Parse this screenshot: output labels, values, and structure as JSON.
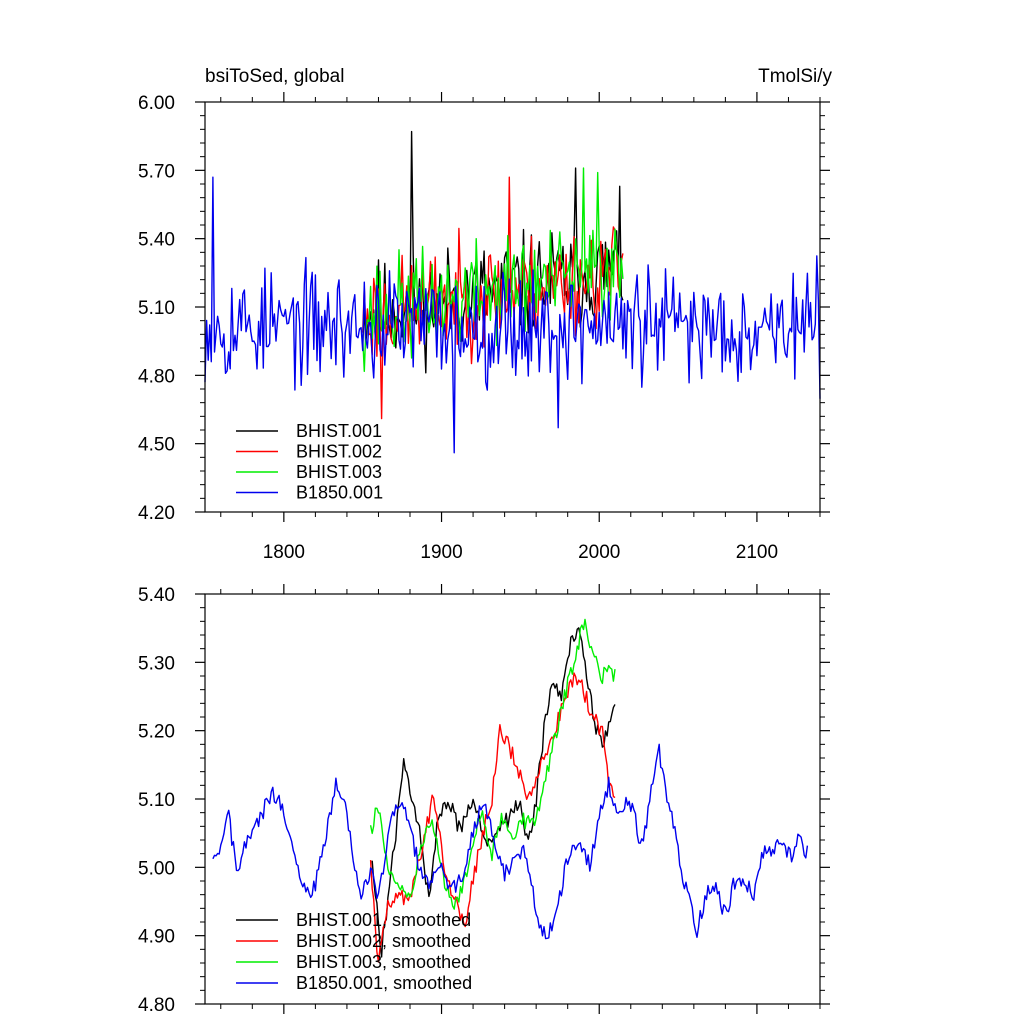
{
  "chart_data": [
    {
      "type": "line",
      "title_left": "bsiToSed, global",
      "title_right": "TmolSi/y",
      "xlim": [
        1750,
        2140
      ],
      "ylim": [
        4.2,
        6.0
      ],
      "xticks": [
        1800,
        1900,
        2000,
        2100
      ],
      "xtick_labels": [
        "1800",
        "1900",
        "2000",
        "2100"
      ],
      "yticks": [
        4.2,
        4.5,
        4.8,
        5.1,
        5.4,
        5.7,
        6.0
      ],
      "ytick_labels": [
        "4.20",
        "4.50",
        "4.80",
        "5.10",
        "5.40",
        "5.70",
        "6.00"
      ],
      "legend_position": "bottom-left",
      "series": [
        {
          "name": "BHIST.001",
          "color": "#000000",
          "x_start": 1850,
          "x_end": 2015,
          "mean": 5.07,
          "amp": 0.16,
          "trend": 0.0012,
          "seed": 11,
          "peaks": [
            [
              1881,
              5.87
            ],
            [
              1985,
              5.71
            ],
            [
              2013,
              5.63
            ]
          ]
        },
        {
          "name": "BHIST.002",
          "color": "#ff0000",
          "x_start": 1850,
          "x_end": 2015,
          "mean": 5.06,
          "amp": 0.16,
          "trend": 0.0012,
          "seed": 23,
          "peaks": [
            [
              1943,
              5.67
            ],
            [
              1862,
              4.61
            ]
          ]
        },
        {
          "name": "BHIST.003",
          "color": "#00ee00",
          "x_start": 1850,
          "x_end": 2015,
          "mean": 5.07,
          "amp": 0.16,
          "trend": 0.0012,
          "seed": 37,
          "peaks": [
            [
              1990,
              5.71
            ],
            [
              1999,
              5.69
            ]
          ]
        },
        {
          "name": "B1850.001",
          "color": "#0000ee",
          "x_start": 1750,
          "x_end": 2140,
          "mean": 5.02,
          "amp": 0.17,
          "trend": 0.0,
          "seed": 53,
          "peaks": [
            [
              1755,
              5.67
            ],
            [
              1908,
              4.46
            ],
            [
              1974,
              4.57
            ]
          ]
        }
      ]
    },
    {
      "type": "line",
      "xlim": [
        1750,
        2140
      ],
      "ylim": [
        4.8,
        5.4
      ],
      "xticks": [
        1800,
        1900,
        2000,
        2100
      ],
      "yticks": [
        4.8,
        4.9,
        5.0,
        5.1,
        5.2,
        5.3,
        5.4
      ],
      "ytick_labels": [
        "4.80",
        "4.90",
        "5.00",
        "5.10",
        "5.20",
        "5.30",
        "5.40"
      ],
      "legend_position": "bottom-left",
      "series": [
        {
          "name": "BHIST.001, smoothed",
          "color": "#000000",
          "x_start": 1856,
          "x_end": 2010,
          "anchors": [
            [
              1856,
              5.0
            ],
            [
              1862,
              4.88
            ],
            [
              1868,
              4.99
            ],
            [
              1876,
              5.15
            ],
            [
              1882,
              5.1
            ],
            [
              1886,
              5.05
            ],
            [
              1892,
              4.95
            ],
            [
              1898,
              5.08
            ],
            [
              1905,
              5.1
            ],
            [
              1912,
              5.05
            ],
            [
              1920,
              5.1
            ],
            [
              1928,
              5.03
            ],
            [
              1935,
              5.06
            ],
            [
              1942,
              5.07
            ],
            [
              1950,
              5.1
            ],
            [
              1955,
              5.03
            ],
            [
              1960,
              5.1
            ],
            [
              1965,
              5.2
            ],
            [
              1970,
              5.27
            ],
            [
              1976,
              5.25
            ],
            [
              1982,
              5.33
            ],
            [
              1988,
              5.35
            ],
            [
              1993,
              5.27
            ],
            [
              1998,
              5.2
            ],
            [
              2003,
              5.18
            ],
            [
              2007,
              5.22
            ],
            [
              2010,
              5.25
            ]
          ]
        },
        {
          "name": "BHIST.002, smoothed",
          "color": "#ff0000",
          "x_start": 1855,
          "x_end": 2010,
          "anchors": [
            [
              1855,
              5.0
            ],
            [
              1860,
              4.86
            ],
            [
              1866,
              4.94
            ],
            [
              1872,
              4.96
            ],
            [
              1880,
              4.95
            ],
            [
              1888,
              5.03
            ],
            [
              1895,
              5.11
            ],
            [
              1902,
              5.0
            ],
            [
              1908,
              4.95
            ],
            [
              1915,
              4.92
            ],
            [
              1920,
              4.98
            ],
            [
              1926,
              5.05
            ],
            [
              1932,
              5.1
            ],
            [
              1937,
              5.2
            ],
            [
              1942,
              5.18
            ],
            [
              1948,
              5.15
            ],
            [
              1953,
              5.1
            ],
            [
              1960,
              5.13
            ],
            [
              1966,
              5.17
            ],
            [
              1972,
              5.2
            ],
            [
              1978,
              5.25
            ],
            [
              1985,
              5.28
            ],
            [
              1990,
              5.26
            ],
            [
              1996,
              5.22
            ],
            [
              2002,
              5.2
            ],
            [
              2006,
              5.13
            ],
            [
              2010,
              5.11
            ]
          ]
        },
        {
          "name": "BHIST.003, smoothed",
          "color": "#00ee00",
          "x_start": 1855,
          "x_end": 2010,
          "anchors": [
            [
              1855,
              5.05
            ],
            [
              1860,
              5.09
            ],
            [
              1866,
              5.0
            ],
            [
              1872,
              4.97
            ],
            [
              1880,
              4.95
            ],
            [
              1888,
              5.04
            ],
            [
              1895,
              5.06
            ],
            [
              1902,
              4.98
            ],
            [
              1908,
              4.94
            ],
            [
              1915,
              4.98
            ],
            [
              1920,
              5.04
            ],
            [
              1926,
              5.08
            ],
            [
              1932,
              5.02
            ],
            [
              1938,
              5.08
            ],
            [
              1945,
              5.04
            ],
            [
              1952,
              5.07
            ],
            [
              1958,
              5.06
            ],
            [
              1965,
              5.12
            ],
            [
              1972,
              5.19
            ],
            [
              1978,
              5.25
            ],
            [
              1984,
              5.3
            ],
            [
              1990,
              5.36
            ],
            [
              1996,
              5.31
            ],
            [
              2002,
              5.28
            ],
            [
              2007,
              5.29
            ],
            [
              2010,
              5.28
            ]
          ]
        },
        {
          "name": "B1850.001, smoothed",
          "color": "#0000ee",
          "x_start": 1755,
          "x_end": 2132,
          "anchors": [
            [
              1755,
              5.0
            ],
            [
              1760,
              5.03
            ],
            [
              1765,
              5.08
            ],
            [
              1770,
              4.99
            ],
            [
              1777,
              5.04
            ],
            [
              1785,
              5.07
            ],
            [
              1792,
              5.11
            ],
            [
              1798,
              5.09
            ],
            [
              1805,
              5.05
            ],
            [
              1811,
              4.97
            ],
            [
              1818,
              4.96
            ],
            [
              1826,
              5.03
            ],
            [
              1833,
              5.13
            ],
            [
              1838,
              5.1
            ],
            [
              1843,
              5.03
            ],
            [
              1849,
              4.95
            ],
            [
              1855,
              5.0
            ],
            [
              1860,
              4.95
            ],
            [
              1866,
              5.05
            ],
            [
              1873,
              5.1
            ],
            [
              1878,
              5.07
            ],
            [
              1885,
              5.01
            ],
            [
              1892,
              4.97
            ],
            [
              1900,
              5.0
            ],
            [
              1906,
              4.97
            ],
            [
              1913,
              4.98
            ],
            [
              1920,
              5.05
            ],
            [
              1926,
              5.1
            ],
            [
              1933,
              5.04
            ],
            [
              1940,
              4.99
            ],
            [
              1947,
              5.01
            ],
            [
              1952,
              5.02
            ],
            [
              1958,
              4.96
            ],
            [
              1964,
              4.9
            ],
            [
              1970,
              4.91
            ],
            [
              1976,
              4.97
            ],
            [
              1982,
              5.03
            ],
            [
              1988,
              5.04
            ],
            [
              1994,
              5.0
            ],
            [
              2000,
              5.08
            ],
            [
              2006,
              5.12
            ],
            [
              2012,
              5.07
            ],
            [
              2017,
              5.1
            ],
            [
              2022,
              5.08
            ],
            [
              2026,
              5.03
            ],
            [
              2030,
              5.07
            ],
            [
              2034,
              5.13
            ],
            [
              2038,
              5.17
            ],
            [
              2042,
              5.11
            ],
            [
              2047,
              5.06
            ],
            [
              2052,
              5.0
            ],
            [
              2057,
              4.95
            ],
            [
              2062,
              4.91
            ],
            [
              2068,
              4.96
            ],
            [
              2074,
              4.97
            ],
            [
              2080,
              4.93
            ],
            [
              2086,
              4.98
            ],
            [
              2092,
              4.98
            ],
            [
              2098,
              4.96
            ],
            [
              2104,
              5.02
            ],
            [
              2110,
              5.03
            ],
            [
              2116,
              5.03
            ],
            [
              2122,
              5.02
            ],
            [
              2126,
              5.05
            ],
            [
              2132,
              5.02
            ]
          ]
        }
      ]
    }
  ]
}
